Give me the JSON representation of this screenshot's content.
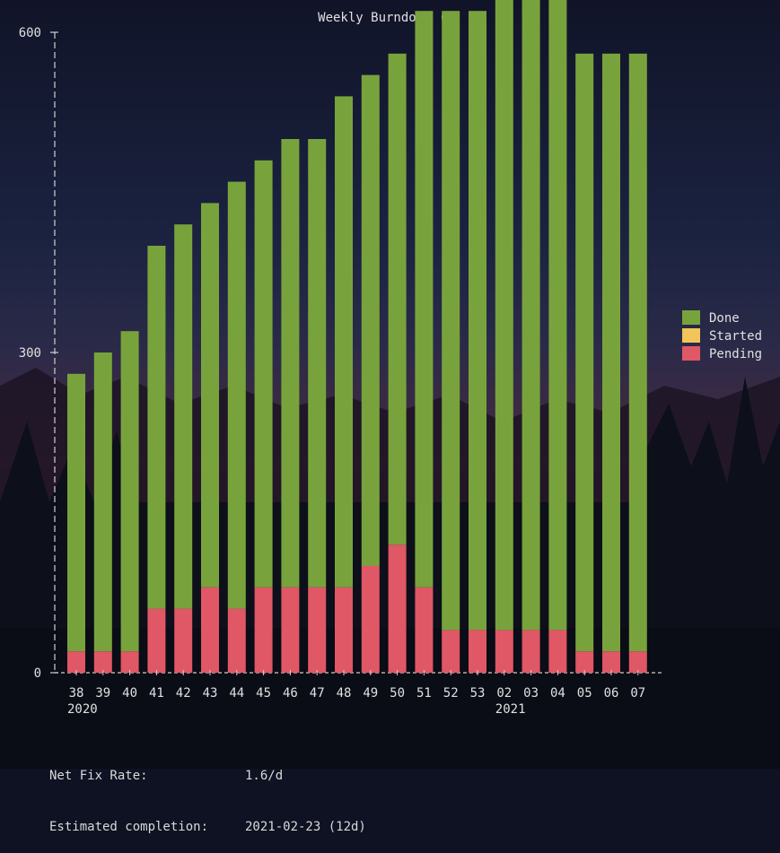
{
  "chart_data": {
    "type": "stacked-bar",
    "title": "Weekly Burndown ()",
    "ylim": [
      0,
      600
    ],
    "yticks": [
      "0",
      "300",
      "600"
    ],
    "categories": [
      "38",
      "39",
      "40",
      "41",
      "42",
      "43",
      "44",
      "45",
      "46",
      "47",
      "48",
      "49",
      "50",
      "51",
      "52",
      "53",
      "02",
      "03",
      "04",
      "05",
      "06",
      "07"
    ],
    "year_labels": [
      {
        "label": "2020",
        "category_index": 0
      },
      {
        "label": "2021",
        "category_index": 16
      }
    ],
    "series": [
      {
        "name": "Pending",
        "values": [
          20,
          20,
          20,
          60,
          60,
          80,
          60,
          80,
          80,
          80,
          80,
          100,
          120,
          80,
          40,
          40,
          40,
          40,
          40,
          20,
          20,
          20
        ]
      },
      {
        "name": "Started",
        "values": [
          0,
          0,
          0,
          0,
          0,
          0,
          0,
          0,
          0,
          0,
          0,
          0,
          0,
          0,
          0,
          0,
          0,
          0,
          0,
          0,
          0,
          0
        ]
      },
      {
        "name": "Done",
        "values": [
          260,
          280,
          300,
          340,
          360,
          360,
          400,
          400,
          420,
          420,
          460,
          460,
          460,
          540,
          580,
          580,
          600,
          600,
          600,
          560,
          560,
          560
        ]
      }
    ],
    "legend_position": "right",
    "grid": false
  },
  "colors": {
    "Done": "#78a33c",
    "Started": "#f2c45a",
    "Pending": "#e05766",
    "axis": "#d0d0d0",
    "text": "#e0e0e0"
  },
  "stats": {
    "net_fix_rate_label": "Net Fix Rate:",
    "net_fix_rate_value": "1.6/d",
    "estimated_completion_label": "Estimated completion:",
    "estimated_completion_value": "2021-02-23 (12d)"
  }
}
